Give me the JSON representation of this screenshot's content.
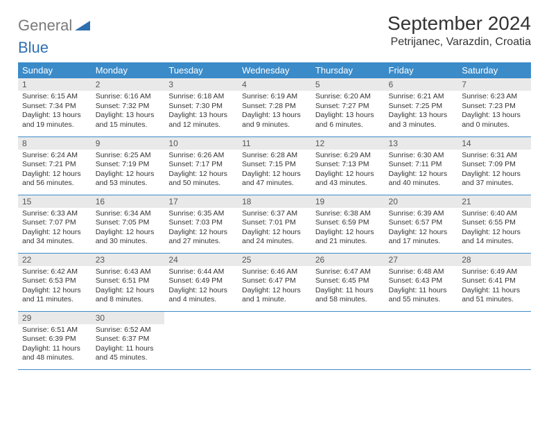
{
  "logo": {
    "part1": "General",
    "part2": "Blue"
  },
  "title": "September 2024",
  "location": "Petrijanec, Varazdin, Croatia",
  "colors": {
    "header_bg": "#3b8bc9",
    "header_text": "#ffffff",
    "daynum_bg": "#e9e9e9",
    "border": "#3b8bc9",
    "logo_gray": "#7a7a7a",
    "logo_blue": "#2f6fb0"
  },
  "weekdays": [
    "Sunday",
    "Monday",
    "Tuesday",
    "Wednesday",
    "Thursday",
    "Friday",
    "Saturday"
  ],
  "days": [
    {
      "n": 1,
      "sunrise": "6:15 AM",
      "sunset": "7:34 PM",
      "daylight": "13 hours and 19 minutes."
    },
    {
      "n": 2,
      "sunrise": "6:16 AM",
      "sunset": "7:32 PM",
      "daylight": "13 hours and 15 minutes."
    },
    {
      "n": 3,
      "sunrise": "6:18 AM",
      "sunset": "7:30 PM",
      "daylight": "13 hours and 12 minutes."
    },
    {
      "n": 4,
      "sunrise": "6:19 AM",
      "sunset": "7:28 PM",
      "daylight": "13 hours and 9 minutes."
    },
    {
      "n": 5,
      "sunrise": "6:20 AM",
      "sunset": "7:27 PM",
      "daylight": "13 hours and 6 minutes."
    },
    {
      "n": 6,
      "sunrise": "6:21 AM",
      "sunset": "7:25 PM",
      "daylight": "13 hours and 3 minutes."
    },
    {
      "n": 7,
      "sunrise": "6:23 AM",
      "sunset": "7:23 PM",
      "daylight": "13 hours and 0 minutes."
    },
    {
      "n": 8,
      "sunrise": "6:24 AM",
      "sunset": "7:21 PM",
      "daylight": "12 hours and 56 minutes."
    },
    {
      "n": 9,
      "sunrise": "6:25 AM",
      "sunset": "7:19 PM",
      "daylight": "12 hours and 53 minutes."
    },
    {
      "n": 10,
      "sunrise": "6:26 AM",
      "sunset": "7:17 PM",
      "daylight": "12 hours and 50 minutes."
    },
    {
      "n": 11,
      "sunrise": "6:28 AM",
      "sunset": "7:15 PM",
      "daylight": "12 hours and 47 minutes."
    },
    {
      "n": 12,
      "sunrise": "6:29 AM",
      "sunset": "7:13 PM",
      "daylight": "12 hours and 43 minutes."
    },
    {
      "n": 13,
      "sunrise": "6:30 AM",
      "sunset": "7:11 PM",
      "daylight": "12 hours and 40 minutes."
    },
    {
      "n": 14,
      "sunrise": "6:31 AM",
      "sunset": "7:09 PM",
      "daylight": "12 hours and 37 minutes."
    },
    {
      "n": 15,
      "sunrise": "6:33 AM",
      "sunset": "7:07 PM",
      "daylight": "12 hours and 34 minutes."
    },
    {
      "n": 16,
      "sunrise": "6:34 AM",
      "sunset": "7:05 PM",
      "daylight": "12 hours and 30 minutes."
    },
    {
      "n": 17,
      "sunrise": "6:35 AM",
      "sunset": "7:03 PM",
      "daylight": "12 hours and 27 minutes."
    },
    {
      "n": 18,
      "sunrise": "6:37 AM",
      "sunset": "7:01 PM",
      "daylight": "12 hours and 24 minutes."
    },
    {
      "n": 19,
      "sunrise": "6:38 AM",
      "sunset": "6:59 PM",
      "daylight": "12 hours and 21 minutes."
    },
    {
      "n": 20,
      "sunrise": "6:39 AM",
      "sunset": "6:57 PM",
      "daylight": "12 hours and 17 minutes."
    },
    {
      "n": 21,
      "sunrise": "6:40 AM",
      "sunset": "6:55 PM",
      "daylight": "12 hours and 14 minutes."
    },
    {
      "n": 22,
      "sunrise": "6:42 AM",
      "sunset": "6:53 PM",
      "daylight": "12 hours and 11 minutes."
    },
    {
      "n": 23,
      "sunrise": "6:43 AM",
      "sunset": "6:51 PM",
      "daylight": "12 hours and 8 minutes."
    },
    {
      "n": 24,
      "sunrise": "6:44 AM",
      "sunset": "6:49 PM",
      "daylight": "12 hours and 4 minutes."
    },
    {
      "n": 25,
      "sunrise": "6:46 AM",
      "sunset": "6:47 PM",
      "daylight": "12 hours and 1 minute."
    },
    {
      "n": 26,
      "sunrise": "6:47 AM",
      "sunset": "6:45 PM",
      "daylight": "11 hours and 58 minutes."
    },
    {
      "n": 27,
      "sunrise": "6:48 AM",
      "sunset": "6:43 PM",
      "daylight": "11 hours and 55 minutes."
    },
    {
      "n": 28,
      "sunrise": "6:49 AM",
      "sunset": "6:41 PM",
      "daylight": "11 hours and 51 minutes."
    },
    {
      "n": 29,
      "sunrise": "6:51 AM",
      "sunset": "6:39 PM",
      "daylight": "11 hours and 48 minutes."
    },
    {
      "n": 30,
      "sunrise": "6:52 AM",
      "sunset": "6:37 PM",
      "daylight": "11 hours and 45 minutes."
    }
  ],
  "labels": {
    "sunrise": "Sunrise:",
    "sunset": "Sunset:",
    "daylight": "Daylight:"
  },
  "start_weekday": 0
}
